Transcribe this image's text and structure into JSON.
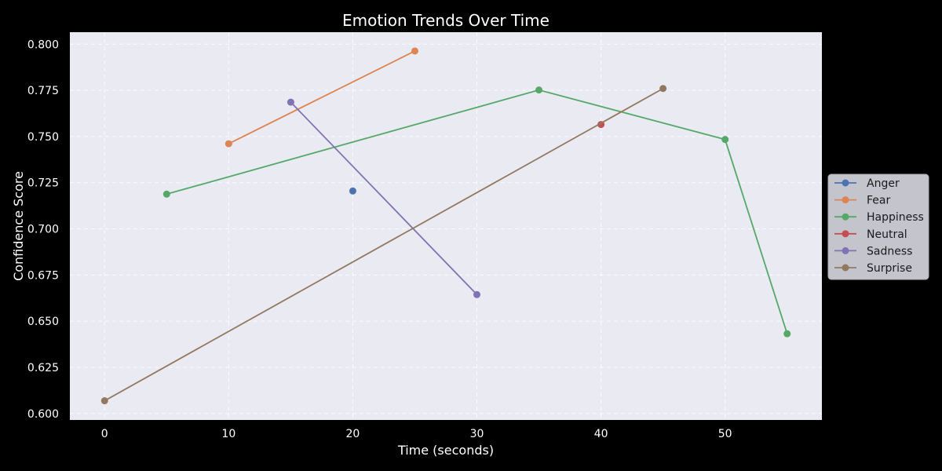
{
  "chart_data": {
    "type": "line",
    "title": "Emotion Trends Over Time",
    "xlabel": "Time (seconds)",
    "ylabel": "Confidence Score",
    "xlim": [
      -2.8,
      57.8
    ],
    "ylim": [
      0.5965,
      0.8065
    ],
    "xticks": [
      0,
      10,
      20,
      30,
      40,
      50
    ],
    "yticks": [
      0.6,
      0.625,
      0.65,
      0.675,
      0.7,
      0.725,
      0.75,
      0.775,
      0.8
    ],
    "ytick_labels": [
      "0.600",
      "0.625",
      "0.650",
      "0.675",
      "0.700",
      "0.725",
      "0.750",
      "0.775",
      "0.800"
    ],
    "grid": true,
    "legend_position": "center-right-outside",
    "series": [
      {
        "name": "Anger",
        "color": "#4c72b0",
        "points": [
          [
            20,
            0.7205
          ]
        ]
      },
      {
        "name": "Fear",
        "color": "#dd8452",
        "points": [
          [
            10,
            0.7461
          ],
          [
            25,
            0.7963
          ]
        ]
      },
      {
        "name": "Happiness",
        "color": "#55a868",
        "points": [
          [
            5,
            0.7188
          ],
          [
            35,
            0.7752
          ],
          [
            50,
            0.7484
          ],
          [
            55,
            0.6432
          ]
        ]
      },
      {
        "name": "Neutral",
        "color": "#c44e52",
        "points": [
          [
            40,
            0.7565
          ]
        ]
      },
      {
        "name": "Sadness",
        "color": "#8172b3",
        "points": [
          [
            15,
            0.7686
          ],
          [
            30,
            0.6644
          ]
        ]
      },
      {
        "name": "Surprise",
        "color": "#937860",
        "points": [
          [
            0,
            0.6069
          ],
          [
            45,
            0.776
          ]
        ]
      }
    ]
  },
  "style": {
    "page_background": "#000000",
    "plot_background": "#eaeaf2",
    "grid_color": "#ffffff",
    "text_color": "#ffffff",
    "legend_background": "#c4c4cc"
  }
}
